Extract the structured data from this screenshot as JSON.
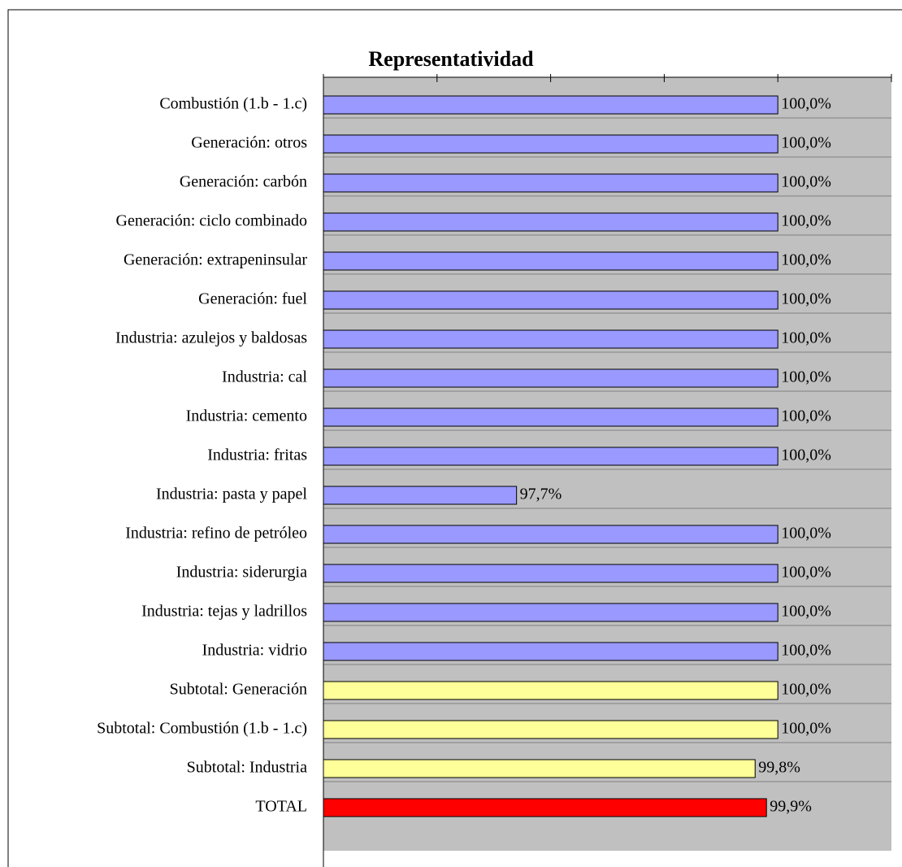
{
  "chart_data": {
    "type": "barh",
    "title": "Representatividad",
    "categories": [
      "Combustión (1.b - 1.c)",
      "Generación: otros",
      "Generación: carbón",
      "Generación: ciclo combinado",
      "Generación: extrapeninsular",
      "Generación: fuel",
      "Industria: azulejos y baldosas",
      "Industria: cal",
      "Industria: cemento",
      "Industria: fritas",
      "Industria: pasta y papel",
      "Industria: refino de petróleo",
      "Industria: siderurgia",
      "Industria: tejas y ladrillos",
      "Industria: vidrio",
      "Subtotal: Generación",
      "Subtotal: Combustión (1.b - 1.c)",
      "Subtotal: Industria",
      "TOTAL"
    ],
    "values": [
      100.0,
      100.0,
      100.0,
      100.0,
      100.0,
      100.0,
      100.0,
      100.0,
      100.0,
      100.0,
      97.7,
      100.0,
      100.0,
      100.0,
      100.0,
      100.0,
      100.0,
      99.8,
      99.9
    ],
    "value_labels": [
      "100,0%",
      "100,0%",
      "100,0%",
      "100,0%",
      "100,0%",
      "100,0%",
      "100,0%",
      "100,0%",
      "100,0%",
      "100,0%",
      "97,7%",
      "100,0%",
      "100,0%",
      "100,0%",
      "100,0%",
      "100,0%",
      "100,0%",
      "99,8%",
      "99,9%"
    ],
    "colors": [
      "#9999ff",
      "#9999ff",
      "#9999ff",
      "#9999ff",
      "#9999ff",
      "#9999ff",
      "#9999ff",
      "#9999ff",
      "#9999ff",
      "#9999ff",
      "#9999ff",
      "#9999ff",
      "#9999ff",
      "#9999ff",
      "#9999ff",
      "#ffff99",
      "#ffff99",
      "#ffff99",
      "#ff0000"
    ],
    "xlim": [
      96,
      101
    ],
    "xticks": [
      96,
      97,
      98,
      99,
      100,
      101
    ],
    "grid": true
  }
}
